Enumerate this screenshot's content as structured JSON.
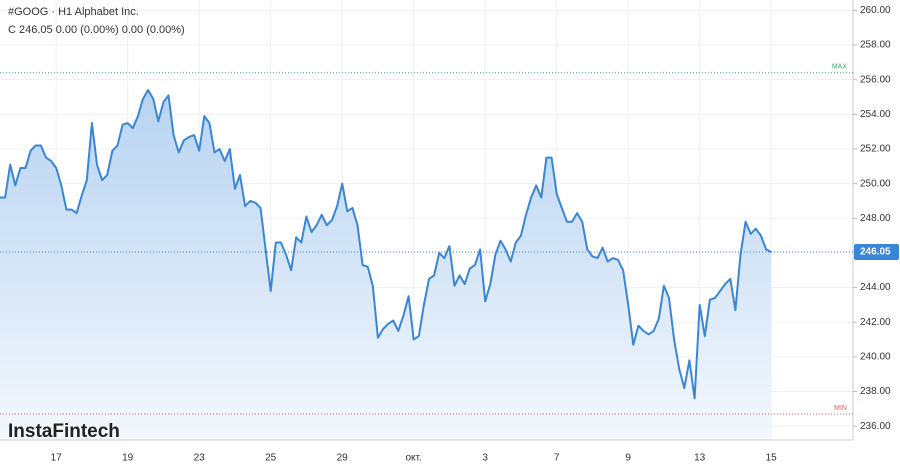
{
  "chart_data": {
    "type": "area",
    "header": "#GOOG · H1 Alphabet Inc.",
    "ohlc_line": "C 246.05 0.00 (0.00%) 0.00 (0.00%)",
    "logo": "InstaFintech",
    "categories": [
      null,
      null,
      null,
      null,
      null,
      null,
      null,
      null,
      null,
      null,
      null,
      "17",
      null,
      null,
      null,
      null,
      null,
      null,
      null,
      null,
      null,
      null,
      null,
      null,
      null,
      "19",
      null,
      null,
      null,
      null,
      null,
      null,
      null,
      null,
      null,
      null,
      null,
      null,
      null,
      "23",
      null,
      null,
      null,
      null,
      null,
      null,
      null,
      null,
      null,
      null,
      null,
      null,
      null,
      "25",
      null,
      null,
      null,
      null,
      null,
      null,
      null,
      null,
      null,
      null,
      null,
      null,
      null,
      "29",
      null,
      null,
      null,
      null,
      null,
      null,
      null,
      null,
      null,
      null,
      null,
      null,
      null,
      "окт.",
      null,
      null,
      null,
      null,
      null,
      null,
      null,
      null,
      null,
      null,
      null,
      null,
      null,
      "3",
      null,
      null,
      null,
      null,
      null,
      null,
      null,
      null,
      null,
      null,
      null,
      null,
      null,
      "7",
      null,
      null,
      null,
      null,
      null,
      null,
      null,
      null,
      null,
      null,
      null,
      null,
      null,
      "9",
      null,
      null,
      null,
      null,
      null,
      null,
      null,
      null,
      null,
      null,
      null,
      null,
      null,
      "13",
      null,
      null,
      null,
      null,
      null,
      null,
      null,
      null,
      null,
      null,
      null,
      null,
      null,
      "15"
    ],
    "values": [
      249.2,
      249.2,
      251.1,
      249.9,
      250.9,
      250.9,
      251.9,
      252.2,
      252.2,
      251.5,
      251.3,
      250.9,
      249.9,
      248.5,
      248.5,
      248.3,
      249.3,
      250.2,
      253.5,
      251.1,
      250.2,
      250.5,
      251.9,
      252.2,
      253.4,
      253.5,
      253.2,
      253.9,
      254.9,
      255.4,
      254.9,
      253.6,
      254.7,
      255.1,
      252.8,
      251.8,
      252.5,
      252.7,
      252.8,
      251.9,
      253.9,
      253.5,
      251.8,
      252.0,
      251.3,
      252.0,
      249.7,
      250.5,
      248.7,
      249.0,
      248.9,
      248.6,
      246.2,
      243.8,
      246.6,
      246.6,
      245.9,
      245.0,
      246.9,
      246.6,
      248.1,
      247.2,
      247.6,
      248.2,
      247.6,
      247.9,
      248.7,
      250.0,
      248.4,
      248.6,
      247.6,
      245.3,
      245.2,
      244.1,
      241.1,
      241.6,
      241.9,
      242.1,
      241.5,
      242.4,
      243.5,
      241.0,
      241.2,
      243.0,
      244.5,
      244.7,
      246.0,
      245.7,
      246.4,
      244.1,
      244.7,
      244.2,
      245.1,
      245.3,
      246.2,
      243.2,
      244.2,
      245.9,
      246.7,
      246.2,
      245.5,
      246.6,
      247.0,
      248.2,
      249.2,
      249.9,
      249.2,
      251.5,
      251.5,
      249.4,
      248.6,
      247.8,
      247.8,
      248.3,
      247.8,
      246.2,
      245.8,
      245.7,
      246.3,
      245.5,
      245.7,
      245.6,
      245.0,
      243.0,
      240.7,
      241.8,
      241.5,
      241.3,
      241.5,
      242.2,
      244.1,
      243.4,
      241.0,
      239.3,
      238.2,
      239.8,
      237.6,
      243.0,
      241.2,
      243.3,
      243.4,
      243.8,
      244.2,
      244.5,
      242.7,
      245.9,
      247.8,
      247.1,
      247.4,
      247.0,
      246.2,
      246.05
    ],
    "color": "#3a86d6",
    "last_price": {
      "value": 246.05,
      "label": "246.05"
    },
    "max_line": {
      "value": 256.4,
      "label": "MAX",
      "color": "#3aa76d"
    },
    "min_line": {
      "value": 236.7,
      "label": "MIN",
      "color": "#e05a5a"
    },
    "ylim": [
      235.2,
      260.6
    ],
    "yticks": [
      {
        "value": 236,
        "label": "236.00"
      },
      {
        "value": 238,
        "label": "238.00"
      },
      {
        "value": 240,
        "label": "240.00"
      },
      {
        "value": 242,
        "label": "242.00"
      },
      {
        "value": 244,
        "label": "244.00"
      },
      {
        "value": 246,
        "label": "246.00"
      },
      {
        "value": 248,
        "label": "248.00"
      },
      {
        "value": 250,
        "label": "250.00"
      },
      {
        "value": 252,
        "label": "252.00"
      },
      {
        "value": 254,
        "label": "254.00"
      },
      {
        "value": 256,
        "label": "256.00"
      },
      {
        "value": 258,
        "label": "258.00"
      },
      {
        "value": 260,
        "label": "260.00"
      }
    ],
    "grid": true
  }
}
